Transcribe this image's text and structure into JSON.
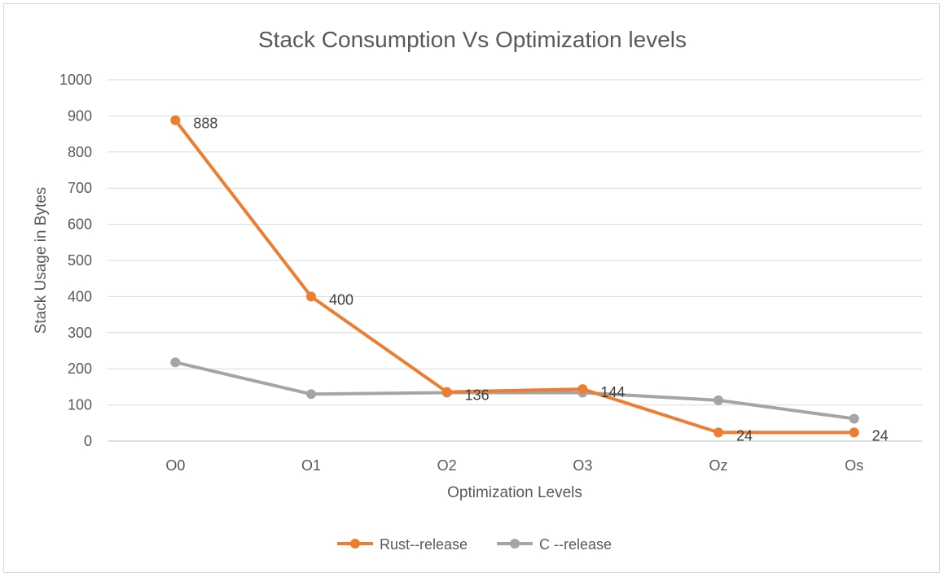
{
  "chart_data": {
    "type": "line",
    "title": "Stack Consumption Vs Optimization levels",
    "xlabel": "Optimization Levels",
    "ylabel": "Stack Usage in Bytes",
    "categories": [
      "O0",
      "O1",
      "O2",
      "O3",
      "Oz",
      "Os"
    ],
    "ylim": [
      0,
      1000
    ],
    "yticks": [
      0,
      100,
      200,
      300,
      400,
      500,
      600,
      700,
      800,
      900,
      1000
    ],
    "grid": true,
    "legend_position": "bottom",
    "series": [
      {
        "name": "Rust--release",
        "color": "#ed7d31",
        "values": [
          888,
          400,
          136,
          144,
          24,
          24
        ],
        "data_labels": [
          "888",
          "400",
          "136",
          "144",
          "24",
          "24"
        ]
      },
      {
        "name": "C --release",
        "color": "#a5a5a5",
        "values": [
          218,
          130,
          134,
          134,
          113,
          62
        ],
        "data_labels": []
      }
    ]
  }
}
